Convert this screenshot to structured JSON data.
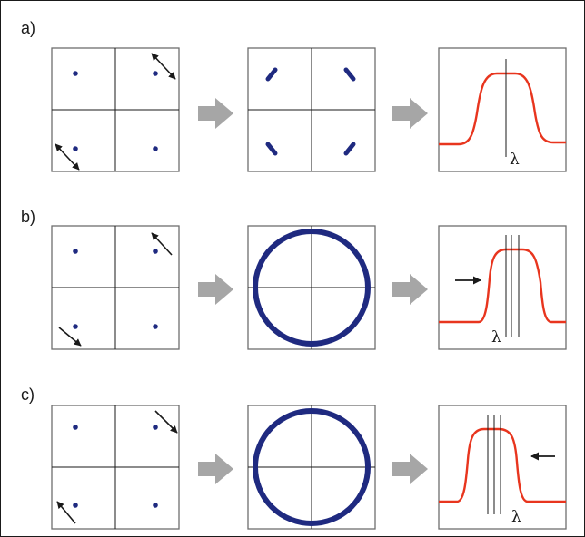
{
  "rows": [
    {
      "label": "a)",
      "lambda": "λ"
    },
    {
      "label": "b)",
      "lambda": "λ"
    },
    {
      "label": "c)",
      "lambda": "λ"
    }
  ],
  "colors": {
    "dot": "#1f2a80",
    "curve": "#e8351e",
    "arrow": "#a6a6a6",
    "frame": "#6e6e6e",
    "line": "#1a1a1a"
  }
}
